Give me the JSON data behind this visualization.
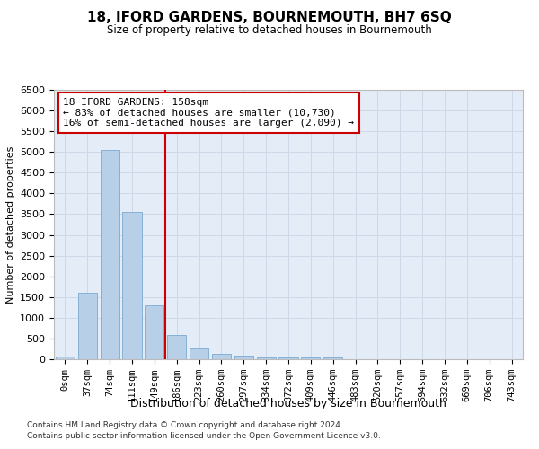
{
  "title": "18, IFORD GARDENS, BOURNEMOUTH, BH7 6SQ",
  "subtitle": "Size of property relative to detached houses in Bournemouth",
  "xlabel": "Distribution of detached houses by size in Bournemouth",
  "ylabel": "Number of detached properties",
  "categories": [
    "0sqm",
    "37sqm",
    "74sqm",
    "111sqm",
    "149sqm",
    "186sqm",
    "223sqm",
    "260sqm",
    "297sqm",
    "334sqm",
    "372sqm",
    "409sqm",
    "446sqm",
    "483sqm",
    "520sqm",
    "557sqm",
    "594sqm",
    "632sqm",
    "669sqm",
    "706sqm",
    "743sqm"
  ],
  "bar_heights": [
    60,
    1600,
    5050,
    3550,
    1300,
    580,
    270,
    130,
    80,
    50,
    50,
    50,
    50,
    0,
    0,
    0,
    0,
    0,
    0,
    0,
    0
  ],
  "bar_color": "#b8cfe8",
  "bar_edge_color": "#7aaad0",
  "vline_color": "#cc0000",
  "vline_x": 4.5,
  "annotation_text": "18 IFORD GARDENS: 158sqm\n← 83% of detached houses are smaller (10,730)\n16% of semi-detached houses are larger (2,090) →",
  "annotation_box_color": "#cc0000",
  "ylim": [
    0,
    6500
  ],
  "yticks": [
    0,
    500,
    1000,
    1500,
    2000,
    2500,
    3000,
    3500,
    4000,
    4500,
    5000,
    5500,
    6000,
    6500
  ],
  "grid_color": "#cdd8e8",
  "bg_color": "#e4edf7",
  "footnote1": "Contains HM Land Registry data © Crown copyright and database right 2024.",
  "footnote2": "Contains public sector information licensed under the Open Government Licence v3.0."
}
